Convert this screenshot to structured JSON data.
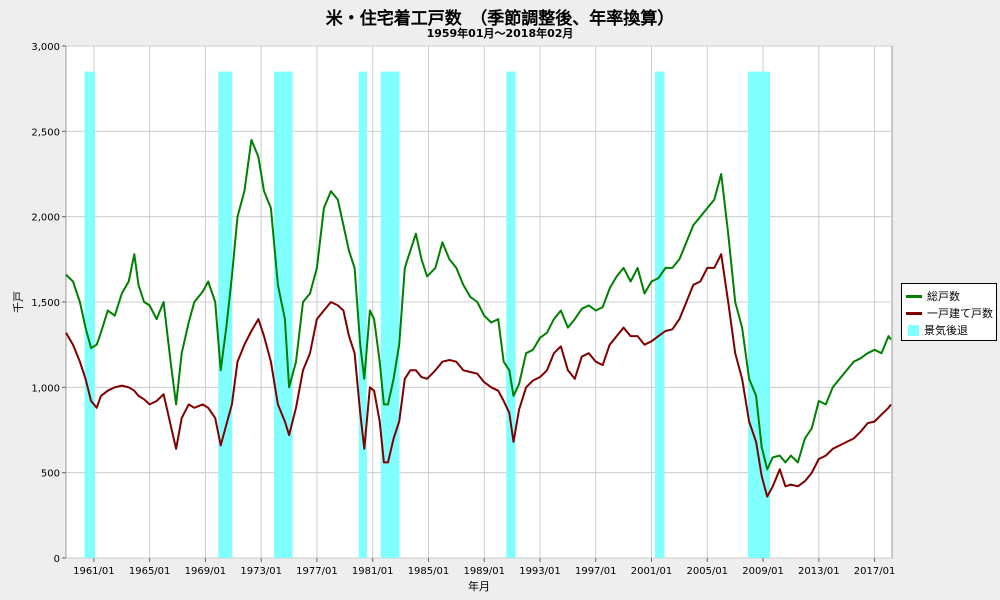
{
  "title": "米・住宅着工戸数　（季節調整後、年率換算）",
  "subtitle": "1959年01月～2018年02月",
  "chart_data": {
    "type": "line",
    "xlabel": "年月",
    "ylabel": "千戸",
    "ylim": [
      0,
      3000
    ],
    "yticks": [
      "0",
      "500",
      "1,000",
      "1,500",
      "2,000",
      "2,500",
      "3,000"
    ],
    "ytick_values": [
      0,
      500,
      1000,
      1500,
      2000,
      2500,
      3000
    ],
    "xlim": [
      1959.0,
      2018.25
    ],
    "xticks": [
      "1961/01",
      "1965/01",
      "1969/01",
      "1973/01",
      "1977/01",
      "1981/01",
      "1985/01",
      "1989/01",
      "1993/01",
      "1997/01",
      "2001/01",
      "2005/01",
      "2009/01",
      "2013/01",
      "2017/01"
    ],
    "xtick_values": [
      1961,
      1965,
      1969,
      1973,
      1977,
      1981,
      1985,
      1989,
      1993,
      1997,
      2001,
      2005,
      2009,
      2013,
      2017
    ],
    "grid": true,
    "legend_position": "right",
    "colors": {
      "total": "#008000",
      "single": "#800000",
      "recession": "#80ffff",
      "plot_bg": "#ffffff",
      "grid": "#cccccc"
    },
    "recessions": [
      [
        1960.33,
        1961.08
      ],
      [
        1969.92,
        1970.92
      ],
      [
        1973.92,
        1975.25
      ],
      [
        1980.0,
        1980.58
      ],
      [
        1981.58,
        1982.92
      ],
      [
        1990.58,
        1991.25
      ],
      [
        2001.25,
        2001.92
      ],
      [
        2007.92,
        2009.5
      ]
    ],
    "series": [
      {
        "name": "総戸数",
        "color": "#008000",
        "x": [
          1959.0,
          1959.5,
          1960.0,
          1960.4,
          1960.8,
          1961.2,
          1961.5,
          1962.0,
          1962.5,
          1963.0,
          1963.5,
          1963.9,
          1964.2,
          1964.6,
          1965.0,
          1965.5,
          1966.0,
          1966.5,
          1966.9,
          1967.3,
          1967.8,
          1968.2,
          1968.8,
          1969.2,
          1969.7,
          1970.1,
          1970.5,
          1970.9,
          1971.3,
          1971.8,
          1972.3,
          1972.8,
          1973.2,
          1973.7,
          1974.2,
          1974.7,
          1975.0,
          1975.5,
          1976.0,
          1976.5,
          1977.0,
          1977.5,
          1978.0,
          1978.5,
          1978.9,
          1979.3,
          1979.7,
          1980.1,
          1980.4,
          1980.8,
          1981.1,
          1981.5,
          1981.8,
          1982.1,
          1982.5,
          1982.9,
          1983.3,
          1983.7,
          1984.1,
          1984.5,
          1984.9,
          1985.5,
          1986.0,
          1986.5,
          1987.0,
          1987.5,
          1988.0,
          1988.5,
          1989.0,
          1989.5,
          1990.0,
          1990.4,
          1990.8,
          1991.1,
          1991.5,
          1992.0,
          1992.5,
          1993.0,
          1993.5,
          1994.0,
          1994.5,
          1995.0,
          1995.5,
          1996.0,
          1996.5,
          1997.0,
          1997.5,
          1998.0,
          1998.5,
          1999.0,
          1999.5,
          2000.0,
          2000.5,
          2001.0,
          2001.5,
          2002.0,
          2002.5,
          2003.0,
          2003.5,
          2004.0,
          2004.5,
          2005.0,
          2005.5,
          2006.0,
          2006.5,
          2007.0,
          2007.5,
          2008.0,
          2008.5,
          2008.9,
          2009.3,
          2009.7,
          2010.2,
          2010.6,
          2011.0,
          2011.5,
          2012.0,
          2012.5,
          2013.0,
          2013.5,
          2014.0,
          2014.5,
          2015.0,
          2015.5,
          2016.0,
          2016.5,
          2017.0,
          2017.5,
          2018.0,
          2018.17
        ],
        "values": [
          1660,
          1620,
          1500,
          1350,
          1230,
          1250,
          1320,
          1450,
          1420,
          1550,
          1620,
          1780,
          1600,
          1500,
          1480,
          1400,
          1500,
          1150,
          900,
          1200,
          1380,
          1500,
          1560,
          1620,
          1500,
          1100,
          1350,
          1650,
          2000,
          2150,
          2450,
          2350,
          2150,
          2050,
          1600,
          1400,
          1000,
          1150,
          1500,
          1550,
          1700,
          2050,
          2150,
          2100,
          1950,
          1800,
          1700,
          1250,
          1050,
          1450,
          1400,
          1150,
          900,
          900,
          1050,
          1250,
          1700,
          1800,
          1900,
          1750,
          1650,
          1700,
          1850,
          1750,
          1700,
          1600,
          1530,
          1500,
          1420,
          1380,
          1400,
          1150,
          1100,
          950,
          1020,
          1200,
          1220,
          1290,
          1320,
          1400,
          1450,
          1350,
          1400,
          1460,
          1480,
          1450,
          1470,
          1580,
          1650,
          1700,
          1620,
          1700,
          1550,
          1620,
          1640,
          1700,
          1700,
          1750,
          1850,
          1950,
          2000,
          2050,
          2100,
          2250,
          1900,
          1500,
          1350,
          1050,
          950,
          650,
          520,
          590,
          600,
          560,
          600,
          560,
          700,
          760,
          920,
          900,
          1000,
          1050,
          1100,
          1150,
          1170,
          1200,
          1220,
          1200,
          1300,
          1280
        ]
      },
      {
        "name": "一戸建て戸数",
        "color": "#800000",
        "x": [
          1959.0,
          1959.5,
          1960.0,
          1960.4,
          1960.8,
          1961.2,
          1961.5,
          1962.0,
          1962.5,
          1963.0,
          1963.5,
          1963.9,
          1964.2,
          1964.6,
          1965.0,
          1965.5,
          1966.0,
          1966.5,
          1966.9,
          1967.3,
          1967.8,
          1968.2,
          1968.8,
          1969.2,
          1969.7,
          1970.1,
          1970.5,
          1970.9,
          1971.3,
          1971.8,
          1972.3,
          1972.8,
          1973.2,
          1973.7,
          1974.2,
          1974.7,
          1975.0,
          1975.5,
          1976.0,
          1976.5,
          1977.0,
          1977.5,
          1978.0,
          1978.5,
          1978.9,
          1979.3,
          1979.7,
          1980.1,
          1980.4,
          1980.8,
          1981.1,
          1981.5,
          1981.8,
          1982.1,
          1982.5,
          1982.9,
          1983.3,
          1983.7,
          1984.1,
          1984.5,
          1984.9,
          1985.5,
          1986.0,
          1986.5,
          1987.0,
          1987.5,
          1988.0,
          1988.5,
          1989.0,
          1989.5,
          1990.0,
          1990.4,
          1990.8,
          1991.1,
          1991.5,
          1992.0,
          1992.5,
          1993.0,
          1993.5,
          1994.0,
          1994.5,
          1995.0,
          1995.5,
          1996.0,
          1996.5,
          1997.0,
          1997.5,
          1998.0,
          1998.5,
          1999.0,
          1999.5,
          2000.0,
          2000.5,
          2001.0,
          2001.5,
          2002.0,
          2002.5,
          2003.0,
          2003.5,
          2004.0,
          2004.5,
          2005.0,
          2005.5,
          2006.0,
          2006.5,
          2007.0,
          2007.5,
          2008.0,
          2008.5,
          2008.9,
          2009.3,
          2009.7,
          2010.2,
          2010.6,
          2011.0,
          2011.5,
          2012.0,
          2012.5,
          2013.0,
          2013.5,
          2014.0,
          2014.5,
          2015.0,
          2015.5,
          2016.0,
          2016.5,
          2017.0,
          2017.5,
          2018.0,
          2018.17
        ],
        "values": [
          1320,
          1250,
          1150,
          1050,
          920,
          880,
          950,
          980,
          1000,
          1010,
          1000,
          980,
          950,
          930,
          900,
          920,
          960,
          780,
          640,
          820,
          900,
          880,
          900,
          880,
          820,
          660,
          780,
          900,
          1150,
          1250,
          1330,
          1400,
          1300,
          1150,
          900,
          800,
          720,
          880,
          1100,
          1200,
          1400,
          1450,
          1500,
          1480,
          1450,
          1300,
          1200,
          850,
          640,
          1000,
          980,
          800,
          560,
          560,
          700,
          800,
          1050,
          1100,
          1100,
          1060,
          1050,
          1100,
          1150,
          1160,
          1150,
          1100,
          1090,
          1080,
          1030,
          1000,
          980,
          920,
          850,
          680,
          870,
          1000,
          1040,
          1060,
          1100,
          1200,
          1240,
          1100,
          1050,
          1180,
          1200,
          1150,
          1130,
          1250,
          1300,
          1350,
          1300,
          1300,
          1250,
          1270,
          1300,
          1330,
          1340,
          1400,
          1500,
          1600,
          1620,
          1700,
          1700,
          1780,
          1500,
          1200,
          1050,
          800,
          680,
          480,
          360,
          420,
          520,
          420,
          430,
          420,
          450,
          500,
          580,
          600,
          640,
          660,
          680,
          700,
          740,
          790,
          800,
          840,
          880,
          900
        ]
      }
    ]
  }
}
